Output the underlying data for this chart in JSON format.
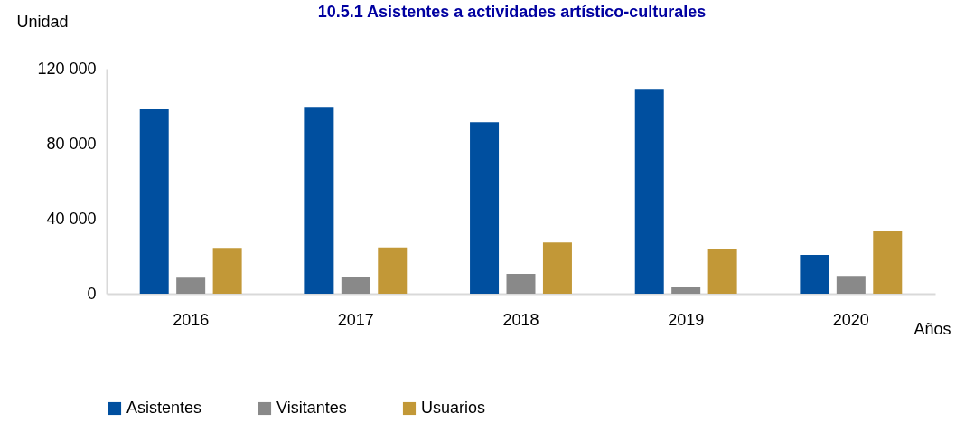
{
  "chart_data": {
    "type": "bar",
    "title": "10.5.1    Asistentes a actividades artístico-culturales",
    "ylabel": "Unidad",
    "xlabel": "Años",
    "categories": [
      "2016",
      "2017",
      "2018",
      "2019",
      "2020"
    ],
    "series": [
      {
        "name": "Asistentes",
        "color": "#004f9f",
        "values": [
          98300,
          99600,
          91400,
          108800,
          20700
        ]
      },
      {
        "name": "Visitantes",
        "color": "#898989",
        "values": [
          8500,
          9200,
          10600,
          3500,
          9500
        ]
      },
      {
        "name": "Usuarios",
        "color": "#c29837",
        "values": [
          24400,
          24700,
          27300,
          24100,
          33300
        ]
      }
    ],
    "ylim": [
      0,
      120000
    ],
    "yticks": [
      {
        "value": 0,
        "label": "0"
      },
      {
        "value": 40000,
        "label": "40 000"
      },
      {
        "value": 80000,
        "label": "80 000"
      },
      {
        "value": 120000,
        "label": "120 000"
      }
    ],
    "legend": "bottom",
    "grid": false
  }
}
